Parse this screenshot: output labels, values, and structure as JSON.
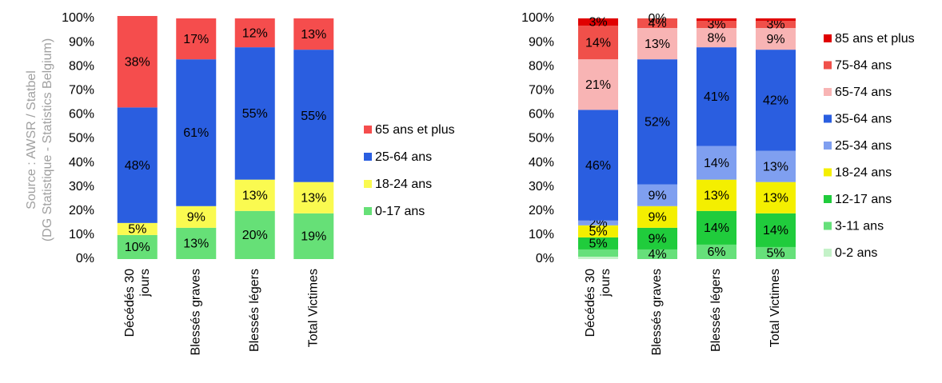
{
  "source": [
    "Source : AWSR / Statbel",
    "(DG Statistique - Statistics Belgium)"
  ],
  "chart_data": [
    {
      "type": "stacked_bar",
      "categories": [
        "Décédés 30 jours",
        "Blessés graves",
        "Blessés légers",
        "Total Victimes"
      ],
      "ylim": [
        0,
        100
      ],
      "yticks": [
        {
          "value": 0,
          "label": "0%"
        },
        {
          "value": 10,
          "label": "10%"
        },
        {
          "value": 20,
          "label": "20%"
        },
        {
          "value": 30,
          "label": "30%"
        },
        {
          "value": 40,
          "label": "40%"
        },
        {
          "value": 50,
          "label": "50%"
        },
        {
          "value": 60,
          "label": "60%"
        },
        {
          "value": 70,
          "label": "70%"
        },
        {
          "value": 80,
          "label": "80%"
        },
        {
          "value": 90,
          "label": "90%"
        },
        {
          "value": 100,
          "label": "100%"
        }
      ],
      "series": [
        {
          "name": "0-17 ans",
          "color": "#66e077",
          "values": [
            10,
            13,
            20,
            19
          ],
          "value_labels": [
            "10%",
            "13%",
            "20%",
            "19%"
          ]
        },
        {
          "name": "18-24 ans",
          "color": "#fafa50",
          "values": [
            5,
            9,
            13,
            13
          ],
          "value_labels": [
            "5%",
            "9%",
            "13%",
            "13%"
          ]
        },
        {
          "name": "25-64 ans",
          "color": "#2a5ee0",
          "values": [
            48,
            61,
            55,
            55
          ],
          "value_labels": [
            "48%",
            "61%",
            "55%",
            "55%"
          ]
        },
        {
          "name": "65 ans et plus",
          "color": "#f54d4d",
          "values": [
            38,
            17,
            12,
            13
          ],
          "value_labels": [
            "38%",
            "17%",
            "12%",
            "13%"
          ]
        }
      ]
    },
    {
      "type": "stacked_bar",
      "categories": [
        "Décédés 30 jours",
        "Blessés graves",
        "Blessés légers",
        "Total Victimes"
      ],
      "ylim": [
        0,
        100
      ],
      "yticks": [
        {
          "value": 0,
          "label": "0%"
        },
        {
          "value": 10,
          "label": "10%"
        },
        {
          "value": 20,
          "label": "20%"
        },
        {
          "value": 30,
          "label": "30%"
        },
        {
          "value": 40,
          "label": "40%"
        },
        {
          "value": 50,
          "label": "50%"
        },
        {
          "value": 60,
          "label": "60%"
        },
        {
          "value": 70,
          "label": "70%"
        },
        {
          "value": 80,
          "label": "80%"
        },
        {
          "value": 90,
          "label": "90%"
        },
        {
          "value": 100,
          "label": "100%"
        }
      ],
      "series": [
        {
          "name": "0-2 ans",
          "color": "#c4f2c8",
          "values": [
            1,
            0,
            0,
            0
          ],
          "value_labels": [
            null,
            null,
            null,
            null
          ]
        },
        {
          "name": "3-11 ans",
          "color": "#66e07a",
          "values": [
            3,
            4,
            6,
            5
          ],
          "value_labels": [
            null,
            "4%",
            "6%",
            "5%"
          ]
        },
        {
          "name": "12-17 ans",
          "color": "#20cc3c",
          "values": [
            5,
            9,
            14,
            14
          ],
          "value_labels": [
            "5%",
            "9%",
            "14%",
            "14%"
          ]
        },
        {
          "name": "18-24 ans",
          "color": "#f4ef00",
          "values": [
            5,
            9,
            13,
            13
          ],
          "value_labels": [
            "5%",
            "9%",
            "13%",
            "13%"
          ]
        },
        {
          "name": "25-34 ans",
          "color": "#7f9ff0",
          "values": [
            2,
            9,
            14,
            13
          ],
          "value_labels": [
            "2%",
            "9%",
            "14%",
            "13%"
          ]
        },
        {
          "name": "35-64 ans",
          "color": "#2a5ee0",
          "values": [
            46,
            52,
            41,
            42
          ],
          "value_labels": [
            "46%",
            "52%",
            "41%",
            "42%"
          ]
        },
        {
          "name": "65-74 ans",
          "color": "#f8b4b4",
          "values": [
            21,
            13,
            8,
            9
          ],
          "value_labels": [
            "21%",
            "13%",
            "8%",
            "9%"
          ]
        },
        {
          "name": "75-84 ans",
          "color": "#f0504a",
          "values": [
            14,
            4,
            3,
            3
          ],
          "value_labels": [
            "14%",
            "4%",
            "3%",
            "3%"
          ]
        },
        {
          "name": "85 ans et plus",
          "color": "#e00000",
          "values": [
            3,
            0,
            1,
            1
          ],
          "value_labels": [
            "3%",
            "0%",
            null,
            null
          ]
        }
      ]
    }
  ]
}
